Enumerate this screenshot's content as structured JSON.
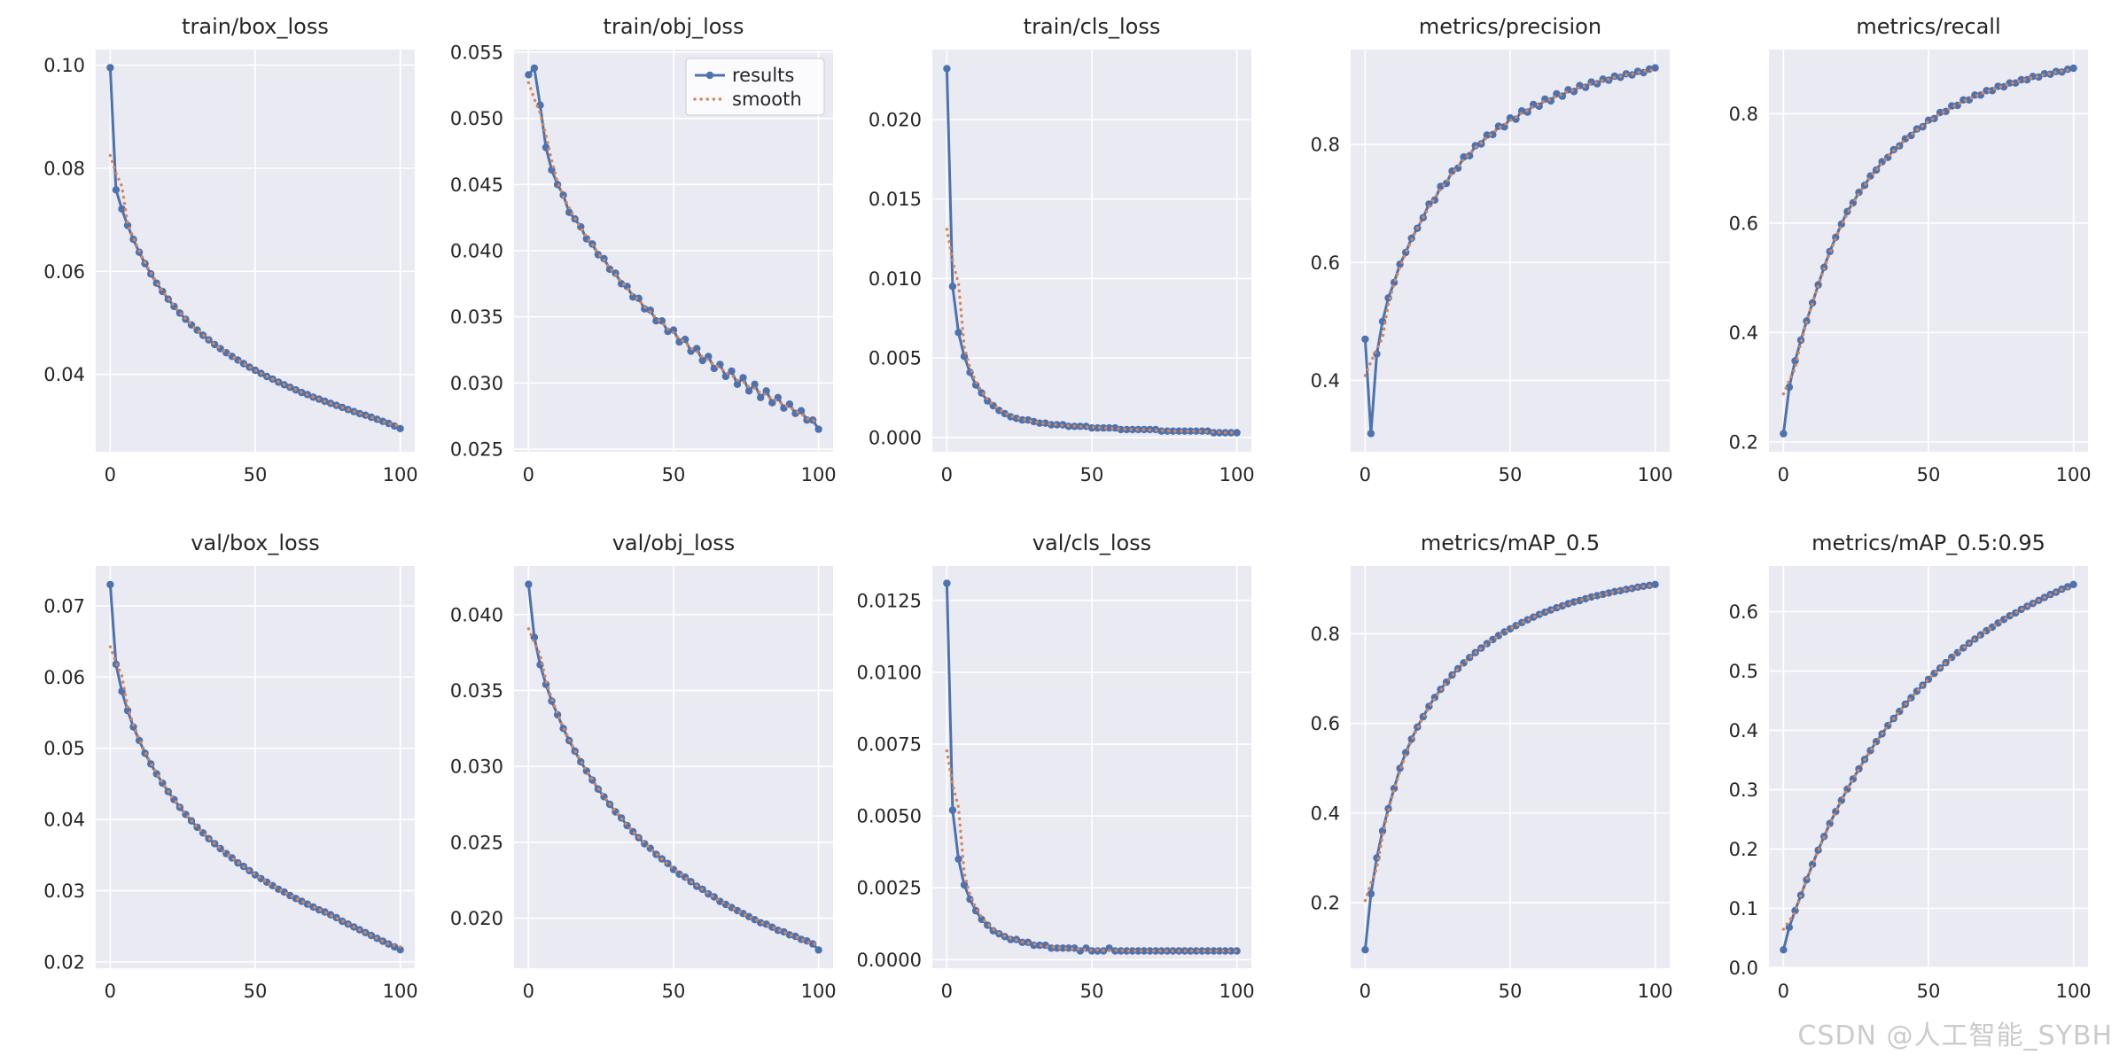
{
  "figure": {
    "background": "#ffffff",
    "axes_background": "#eaeaf2",
    "grid_color": "#ffffff",
    "text_color": "#262626",
    "colors": {
      "results": "#4c72b0",
      "smooth": "#dd8452"
    }
  },
  "legend": {
    "entries": [
      "results",
      "smooth"
    ],
    "position": "upper-right of train/obj_loss subplot"
  },
  "watermark": {
    "text": "CSDN @人工智能_SYBH",
    "color": "#cbcbcb"
  },
  "epochs_x": [
    0,
    2,
    4,
    6,
    8,
    10,
    12,
    14,
    16,
    18,
    20,
    22,
    24,
    26,
    28,
    30,
    32,
    34,
    36,
    38,
    40,
    42,
    44,
    46,
    48,
    50,
    52,
    54,
    56,
    58,
    60,
    62,
    64,
    66,
    68,
    70,
    72,
    74,
    76,
    78,
    80,
    82,
    84,
    86,
    88,
    90,
    92,
    94,
    96,
    98,
    100
  ],
  "chart_data": [
    {
      "type": "line",
      "title": "train/box_loss",
      "xlim": [
        -5,
        105
      ],
      "xticks": [
        0,
        50,
        100
      ],
      "xtick_labels": [
        "0",
        "50",
        "100"
      ],
      "ylim": [
        0.025,
        0.103
      ],
      "yticks": [
        0.04,
        0.06,
        0.08,
        0.1
      ],
      "ytick_labels": [
        "0.04",
        "0.06",
        "0.08",
        "0.10"
      ],
      "show_legend": false,
      "series": [
        {
          "name": "results",
          "values": [
            0.0995,
            0.0758,
            0.0721,
            0.0689,
            0.0662,
            0.0637,
            0.0615,
            0.0595,
            0.0577,
            0.0561,
            0.0546,
            0.0532,
            0.0519,
            0.0507,
            0.0496,
            0.0486,
            0.0476,
            0.0467,
            0.0458,
            0.045,
            0.0442,
            0.0435,
            0.0428,
            0.0421,
            0.0414,
            0.0408,
            0.0402,
            0.0396,
            0.0391,
            0.0385,
            0.038,
            0.0375,
            0.037,
            0.0365,
            0.0361,
            0.0356,
            0.0352,
            0.0348,
            0.0344,
            0.034,
            0.0336,
            0.0332,
            0.0328,
            0.0324,
            0.0321,
            0.0317,
            0.0313,
            0.0309,
            0.0305,
            0.03,
            0.0295
          ]
        },
        {
          "name": "smooth",
          "derived_from": "results",
          "method": "moving_average(5)"
        }
      ]
    },
    {
      "type": "line",
      "title": "train/obj_loss",
      "xlim": [
        -5,
        105
      ],
      "xticks": [
        0,
        50,
        100
      ],
      "xtick_labels": [
        "0",
        "50",
        "100"
      ],
      "ylim": [
        0.0248,
        0.0552
      ],
      "yticks": [
        0.025,
        0.03,
        0.035,
        0.04,
        0.045,
        0.05,
        0.055
      ],
      "ytick_labels": [
        "0.025",
        "0.030",
        "0.035",
        "0.040",
        "0.045",
        "0.050",
        "0.055"
      ],
      "show_legend": true,
      "series": [
        {
          "name": "results",
          "values": [
            0.0533,
            0.0538,
            0.051,
            0.0478,
            0.0461,
            0.045,
            0.0442,
            0.0429,
            0.0424,
            0.0418,
            0.0409,
            0.0405,
            0.0397,
            0.0394,
            0.0386,
            0.0383,
            0.0375,
            0.0373,
            0.0365,
            0.0364,
            0.0356,
            0.0355,
            0.0347,
            0.0347,
            0.0339,
            0.034,
            0.0331,
            0.0333,
            0.0324,
            0.0326,
            0.0317,
            0.032,
            0.0311,
            0.0314,
            0.0305,
            0.0309,
            0.0299,
            0.0304,
            0.0294,
            0.0299,
            0.0289,
            0.0294,
            0.0285,
            0.0289,
            0.0281,
            0.0284,
            0.0277,
            0.0279,
            0.0272,
            0.0272,
            0.0265
          ]
        },
        {
          "name": "smooth",
          "derived_from": "results",
          "method": "moving_average(5)"
        }
      ]
    },
    {
      "type": "line",
      "title": "train/cls_loss",
      "xlim": [
        -5,
        105
      ],
      "xticks": [
        0,
        50,
        100
      ],
      "xtick_labels": [
        "0",
        "50",
        "100"
      ],
      "ylim": [
        -0.0009,
        0.0244
      ],
      "yticks": [
        0.0,
        0.005,
        0.01,
        0.015,
        0.02
      ],
      "ytick_labels": [
        "0.000",
        "0.005",
        "0.010",
        "0.015",
        "0.020"
      ],
      "show_legend": false,
      "series": [
        {
          "name": "results",
          "values": [
            0.0232,
            0.0095,
            0.0066,
            0.0051,
            0.0041,
            0.0033,
            0.0028,
            0.0023,
            0.002,
            0.0017,
            0.0015,
            0.0013,
            0.0012,
            0.0011,
            0.0011,
            0.001,
            0.0009,
            0.0009,
            0.0008,
            0.0008,
            0.0008,
            0.0007,
            0.0007,
            0.0007,
            0.0007,
            0.0006,
            0.0006,
            0.0006,
            0.0006,
            0.0006,
            0.0005,
            0.0005,
            0.0005,
            0.0005,
            0.0005,
            0.0005,
            0.0005,
            0.0004,
            0.0004,
            0.0004,
            0.0004,
            0.0004,
            0.0004,
            0.0004,
            0.0004,
            0.0004,
            0.0003,
            0.0003,
            0.0003,
            0.0003,
            0.0003
          ]
        },
        {
          "name": "smooth",
          "derived_from": "results",
          "method": "moving_average(5)"
        }
      ]
    },
    {
      "type": "line",
      "title": "metrics/precision",
      "xlim": [
        -5,
        105
      ],
      "xticks": [
        0,
        50,
        100
      ],
      "xtick_labels": [
        "0",
        "50",
        "100"
      ],
      "ylim": [
        0.279,
        0.961
      ],
      "yticks": [
        0.4,
        0.6,
        0.8
      ],
      "ytick_labels": [
        "0.4",
        "0.6",
        "0.8"
      ],
      "show_legend": false,
      "series": [
        {
          "name": "results",
          "values": [
            0.47,
            0.31,
            0.445,
            0.5,
            0.54,
            0.566,
            0.597,
            0.617,
            0.641,
            0.658,
            0.676,
            0.699,
            0.706,
            0.729,
            0.734,
            0.755,
            0.76,
            0.779,
            0.781,
            0.798,
            0.801,
            0.816,
            0.817,
            0.831,
            0.83,
            0.845,
            0.843,
            0.857,
            0.855,
            0.868,
            0.865,
            0.877,
            0.874,
            0.886,
            0.882,
            0.893,
            0.89,
            0.9,
            0.897,
            0.906,
            0.903,
            0.911,
            0.909,
            0.916,
            0.914,
            0.92,
            0.918,
            0.924,
            0.922,
            0.928,
            0.93
          ]
        },
        {
          "name": "smooth",
          "derived_from": "results",
          "method": "moving_average(5)"
        }
      ]
    },
    {
      "type": "line",
      "title": "metrics/recall",
      "xlim": [
        -5,
        105
      ],
      "xticks": [
        0,
        50,
        100
      ],
      "xtick_labels": [
        "0",
        "50",
        "100"
      ],
      "ylim": [
        0.182,
        0.917
      ],
      "yticks": [
        0.2,
        0.4,
        0.6,
        0.8
      ],
      "ytick_labels": [
        "0.2",
        "0.4",
        "0.6",
        "0.8"
      ],
      "show_legend": false,
      "series": [
        {
          "name": "results",
          "values": [
            0.215,
            0.3,
            0.348,
            0.386,
            0.421,
            0.454,
            0.487,
            0.519,
            0.548,
            0.574,
            0.598,
            0.621,
            0.637,
            0.656,
            0.669,
            0.686,
            0.697,
            0.712,
            0.72,
            0.734,
            0.741,
            0.754,
            0.76,
            0.772,
            0.776,
            0.788,
            0.791,
            0.802,
            0.804,
            0.814,
            0.815,
            0.825,
            0.825,
            0.834,
            0.834,
            0.842,
            0.842,
            0.85,
            0.849,
            0.856,
            0.856,
            0.862,
            0.862,
            0.868,
            0.867,
            0.873,
            0.872,
            0.877,
            0.876,
            0.881,
            0.883
          ]
        },
        {
          "name": "smooth",
          "derived_from": "results",
          "method": "moving_average(5)"
        }
      ]
    },
    {
      "type": "line",
      "title": "val/box_loss",
      "xlim": [
        -5,
        105
      ],
      "xticks": [
        0,
        50,
        100
      ],
      "xtick_labels": [
        "0",
        "50",
        "100"
      ],
      "ylim": [
        0.0191,
        0.0756
      ],
      "yticks": [
        0.02,
        0.03,
        0.04,
        0.05,
        0.06,
        0.07
      ],
      "ytick_labels": [
        "0.02",
        "0.03",
        "0.04",
        "0.05",
        "0.06",
        "0.07"
      ],
      "show_legend": false,
      "series": [
        {
          "name": "results",
          "values": [
            0.073,
            0.0618,
            0.058,
            0.0553,
            0.053,
            0.0511,
            0.0493,
            0.0478,
            0.0464,
            0.0451,
            0.0439,
            0.0428,
            0.0417,
            0.0407,
            0.0398,
            0.0389,
            0.0381,
            0.0373,
            0.0366,
            0.0359,
            0.0352,
            0.0346,
            0.0339,
            0.0334,
            0.0328,
            0.0322,
            0.0317,
            0.0312,
            0.0307,
            0.0302,
            0.0298,
            0.0293,
            0.0289,
            0.0285,
            0.0281,
            0.0277,
            0.0273,
            0.027,
            0.0266,
            0.0262,
            0.0257,
            0.0253,
            0.0249,
            0.0245,
            0.0241,
            0.0237,
            0.0233,
            0.0229,
            0.0225,
            0.0221,
            0.0217
          ]
        },
        {
          "name": "smooth",
          "derived_from": "results",
          "method": "moving_average(5)"
        }
      ]
    },
    {
      "type": "line",
      "title": "val/obj_loss",
      "xlim": [
        -5,
        105
      ],
      "xticks": [
        0,
        50,
        100
      ],
      "xtick_labels": [
        "0",
        "50",
        "100"
      ],
      "ylim": [
        0.0167,
        0.0432
      ],
      "yticks": [
        0.02,
        0.025,
        0.03,
        0.035,
        0.04
      ],
      "ytick_labels": [
        "0.020",
        "0.025",
        "0.030",
        "0.035",
        "0.040"
      ],
      "show_legend": false,
      "series": [
        {
          "name": "results",
          "values": [
            0.042,
            0.0385,
            0.0367,
            0.0354,
            0.0343,
            0.0334,
            0.0325,
            0.0317,
            0.031,
            0.0303,
            0.0297,
            0.0291,
            0.0285,
            0.028,
            0.0275,
            0.027,
            0.0266,
            0.0261,
            0.0257,
            0.0253,
            0.0249,
            0.0246,
            0.0242,
            0.0239,
            0.0236,
            0.0232,
            0.0229,
            0.0227,
            0.0224,
            0.0221,
            0.0219,
            0.0216,
            0.0214,
            0.0211,
            0.0209,
            0.0207,
            0.0205,
            0.0203,
            0.0201,
            0.0199,
            0.0197,
            0.0196,
            0.0194,
            0.0192,
            0.0191,
            0.0189,
            0.0188,
            0.0186,
            0.0185,
            0.0183,
            0.0179
          ]
        },
        {
          "name": "smooth",
          "derived_from": "results",
          "method": "moving_average(5)"
        }
      ]
    },
    {
      "type": "line",
      "title": "val/cls_loss",
      "xlim": [
        -5,
        105
      ],
      "xticks": [
        0,
        50,
        100
      ],
      "xtick_labels": [
        "0",
        "50",
        "100"
      ],
      "ylim": [
        -0.0003,
        0.0137
      ],
      "yticks": [
        0.0,
        0.0025,
        0.005,
        0.0075,
        0.01,
        0.0125
      ],
      "ytick_labels": [
        "0.0000",
        "0.0025",
        "0.0050",
        "0.0075",
        "0.0100",
        "0.0125"
      ],
      "show_legend": false,
      "series": [
        {
          "name": "results",
          "values": [
            0.0131,
            0.0052,
            0.0035,
            0.0026,
            0.0021,
            0.0017,
            0.0014,
            0.0012,
            0.001,
            0.0009,
            0.0008,
            0.0007,
            0.0007,
            0.0006,
            0.0006,
            0.0005,
            0.0005,
            0.0005,
            0.0004,
            0.0004,
            0.0004,
            0.0004,
            0.0004,
            0.0003,
            0.0004,
            0.0003,
            0.0003,
            0.0003,
            0.0004,
            0.0003,
            0.0003,
            0.0003,
            0.0003,
            0.0003,
            0.0003,
            0.0003,
            0.0003,
            0.0003,
            0.0003,
            0.0003,
            0.0003,
            0.0003,
            0.0003,
            0.0003,
            0.0003,
            0.0003,
            0.0003,
            0.0003,
            0.0003,
            0.0003,
            0.0003
          ]
        },
        {
          "name": "smooth",
          "derived_from": "results",
          "method": "moving_average(5)"
        }
      ]
    },
    {
      "type": "line",
      "title": "metrics/mAP_0.5",
      "xlim": [
        -5,
        105
      ],
      "xticks": [
        0,
        50,
        100
      ],
      "xtick_labels": [
        "0",
        "50",
        "100"
      ],
      "ylim": [
        0.054,
        0.951
      ],
      "yticks": [
        0.2,
        0.4,
        0.6,
        0.8
      ],
      "ytick_labels": [
        "0.2",
        "0.4",
        "0.6",
        "0.8"
      ],
      "show_legend": false,
      "series": [
        {
          "name": "results",
          "values": [
            0.095,
            0.22,
            0.3,
            0.36,
            0.41,
            0.455,
            0.5,
            0.535,
            0.565,
            0.592,
            0.615,
            0.638,
            0.658,
            0.676,
            0.692,
            0.708,
            0.722,
            0.735,
            0.747,
            0.758,
            0.768,
            0.778,
            0.787,
            0.796,
            0.804,
            0.811,
            0.818,
            0.825,
            0.831,
            0.837,
            0.843,
            0.848,
            0.853,
            0.858,
            0.862,
            0.867,
            0.871,
            0.874,
            0.878,
            0.882,
            0.885,
            0.888,
            0.891,
            0.894,
            0.896,
            0.899,
            0.901,
            0.904,
            0.906,
            0.908,
            0.91
          ]
        },
        {
          "name": "smooth",
          "derived_from": "results",
          "method": "moving_average(5)"
        }
      ]
    },
    {
      "type": "line",
      "title": "metrics/mAP_0.5:0.95",
      "xlim": [
        -5,
        105
      ],
      "xticks": [
        0,
        50,
        100
      ],
      "xtick_labels": [
        "0",
        "50",
        "100"
      ],
      "ylim": [
        -0.001,
        0.677
      ],
      "yticks": [
        0.0,
        0.1,
        0.2,
        0.3,
        0.4,
        0.5,
        0.6
      ],
      "ytick_labels": [
        "0.0",
        "0.1",
        "0.2",
        "0.3",
        "0.4",
        "0.5",
        "0.6"
      ],
      "show_legend": false,
      "series": [
        {
          "name": "results",
          "values": [
            0.03,
            0.068,
            0.096,
            0.122,
            0.148,
            0.174,
            0.198,
            0.221,
            0.243,
            0.263,
            0.282,
            0.301,
            0.318,
            0.335,
            0.351,
            0.366,
            0.381,
            0.394,
            0.408,
            0.42,
            0.432,
            0.444,
            0.455,
            0.466,
            0.476,
            0.486,
            0.496,
            0.505,
            0.514,
            0.523,
            0.531,
            0.539,
            0.547,
            0.554,
            0.561,
            0.568,
            0.574,
            0.581,
            0.587,
            0.593,
            0.598,
            0.604,
            0.609,
            0.614,
            0.619,
            0.624,
            0.629,
            0.633,
            0.638,
            0.642,
            0.646
          ]
        },
        {
          "name": "smooth",
          "derived_from": "results",
          "method": "moving_average(5)"
        }
      ]
    }
  ]
}
